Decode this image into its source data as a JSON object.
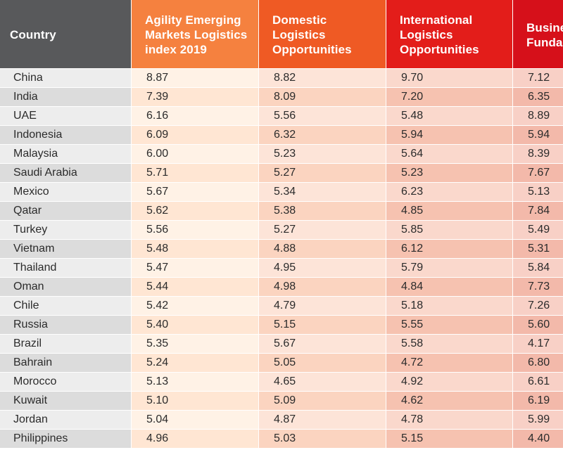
{
  "headers": {
    "country": "Country",
    "agility": "Agility Emerging\nMarkets Logistics\nindex 2019",
    "domestic": "Domestic\nLogistics\nOpportunities",
    "international": "International\nLogistics\nOpportunities",
    "business": "Busine\nFunda"
  },
  "colors": {
    "country_header": "#58595b",
    "agility_header": "#f5813f",
    "domestic_header": "#ef5a24",
    "international_header": "#e31d1a",
    "business_header": "#d6101a"
  },
  "rows": [
    {
      "country": "China",
      "agility": "8.87",
      "domestic": "8.82",
      "international": "9.70",
      "business": "7.12"
    },
    {
      "country": "India",
      "agility": "7.39",
      "domestic": "8.09",
      "international": "7.20",
      "business": "6.35"
    },
    {
      "country": "UAE",
      "agility": "6.16",
      "domestic": "5.56",
      "international": "5.48",
      "business": "8.89"
    },
    {
      "country": "Indonesia",
      "agility": "6.09",
      "domestic": "6.32",
      "international": "5.94",
      "business": "5.94"
    },
    {
      "country": "Malaysia",
      "agility": "6.00",
      "domestic": "5.23",
      "international": "5.64",
      "business": "8.39"
    },
    {
      "country": "Saudi Arabia",
      "agility": "5.71",
      "domestic": "5.27",
      "international": "5.23",
      "business": "7.67"
    },
    {
      "country": "Mexico",
      "agility": "5.67",
      "domestic": "5.34",
      "international": "6.23",
      "business": "5.13"
    },
    {
      "country": "Qatar",
      "agility": "5.62",
      "domestic": "5.38",
      "international": "4.85",
      "business": "7.84"
    },
    {
      "country": "Turkey",
      "agility": "5.56",
      "domestic": "5.27",
      "international": "5.85",
      "business": "5.49"
    },
    {
      "country": "Vietnam",
      "agility": "5.48",
      "domestic": "4.88",
      "international": "6.12",
      "business": "5.31"
    },
    {
      "country": "Thailand",
      "agility": "5.47",
      "domestic": "4.95",
      "international": "5.79",
      "business": "5.84"
    },
    {
      "country": "Oman",
      "agility": "5.44",
      "domestic": "4.98",
      "international": "4.84",
      "business": "7.73"
    },
    {
      "country": "Chile",
      "agility": "5.42",
      "domestic": "4.79",
      "international": "5.18",
      "business": "7.26"
    },
    {
      "country": "Russia",
      "agility": "5.40",
      "domestic": "5.15",
      "international": "5.55",
      "business": "5.60"
    },
    {
      "country": "Brazil",
      "agility": "5.35",
      "domestic": "5.67",
      "international": "5.58",
      "business": "4.17"
    },
    {
      "country": "Bahrain",
      "agility": "5.24",
      "domestic": "5.05",
      "international": "4.72",
      "business": "6.80"
    },
    {
      "country": "Morocco",
      "agility": "5.13",
      "domestic": "4.65",
      "international": "4.92",
      "business": "6.61"
    },
    {
      "country": "Kuwait",
      "agility": "5.10",
      "domestic": "5.09",
      "international": "4.62",
      "business": "6.19"
    },
    {
      "country": "Jordan",
      "agility": "5.04",
      "domestic": "4.87",
      "international": "4.78",
      "business": "5.99"
    },
    {
      "country": "Philippines",
      "agility": "4.96",
      "domestic": "5.03",
      "international": "5.15",
      "business": "4.40"
    }
  ]
}
